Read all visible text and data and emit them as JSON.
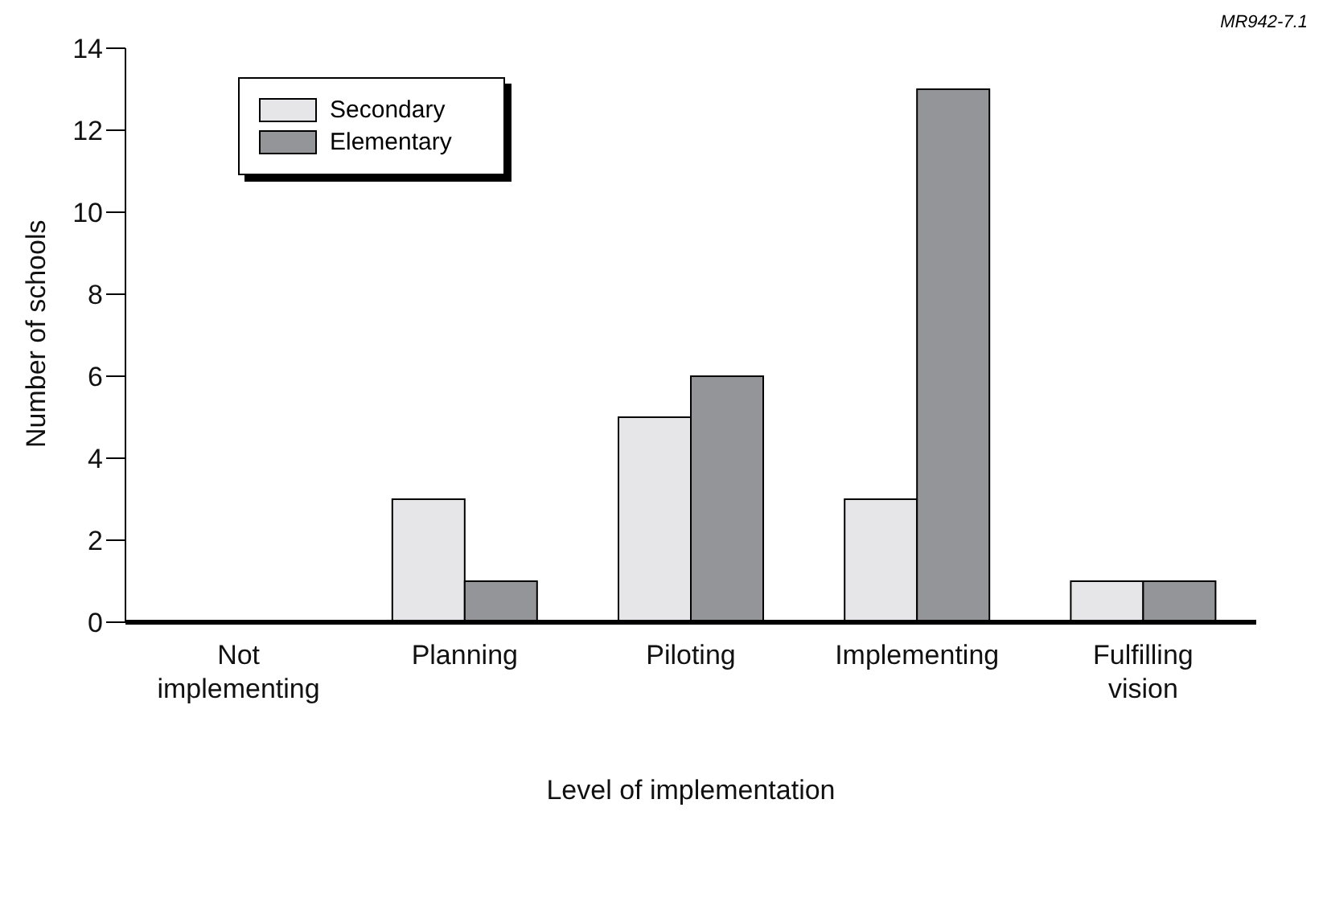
{
  "chart_data": {
    "type": "bar",
    "xlabel": "Level of implementation",
    "ylabel": "Number of schools",
    "annotations": [
      "MR942-7.1"
    ],
    "categories": [
      "Not\nimplementing",
      "Planning",
      "Piloting",
      "Implementing",
      "Fulfilling\nvision"
    ],
    "series": [
      {
        "name": "Secondary",
        "color": "#e6e6e8",
        "values": [
          0,
          3,
          5,
          3,
          1
        ]
      },
      {
        "name": "Elementary",
        "color": "#949598",
        "values": [
          0,
          1,
          6,
          13,
          1
        ]
      }
    ],
    "ylim": [
      0,
      14
    ],
    "yticks": [
      0,
      2,
      4,
      6,
      8,
      10,
      12,
      14
    ],
    "grid": false,
    "legend": "top left"
  }
}
